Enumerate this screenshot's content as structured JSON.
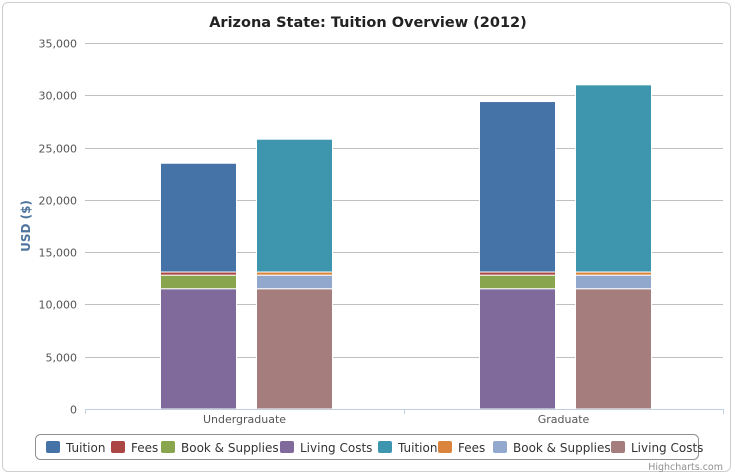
{
  "chart_data": {
    "type": "bar",
    "stacked": true,
    "title": "Arizona State: Tuition Overview (2012)",
    "ylabel": "USD ($)",
    "ylim": [
      0,
      35000
    ],
    "yticks": [
      0,
      5000,
      10000,
      15000,
      20000,
      25000,
      30000,
      35000
    ],
    "ytick_labels": [
      "0",
      "5,000",
      "10,000",
      "15,000",
      "20,000",
      "25,000",
      "30,000",
      "35,000"
    ],
    "categories": [
      "Undergraduate",
      "Graduate"
    ],
    "grid": true,
    "legend_position": "bottom",
    "stacks": [
      {
        "series": [
          {
            "name": "Living Costs",
            "color": "#80699b",
            "values": [
              11500,
              11500
            ]
          },
          {
            "name": "Book & Supplies",
            "color": "#89a54e",
            "values": [
              1300,
              1300
            ]
          },
          {
            "name": "Fees",
            "color": "#aa4643",
            "values": [
              300,
              300
            ]
          },
          {
            "name": "Tuition",
            "color": "#4572a7",
            "values": [
              10400,
              16300
            ]
          }
        ]
      },
      {
        "series": [
          {
            "name": "Living Costs",
            "color": "#a47d7c",
            "values": [
              11500,
              11500
            ]
          },
          {
            "name": "Book & Supplies",
            "color": "#92a8cd",
            "values": [
              1300,
              1300
            ]
          },
          {
            "name": "Fees",
            "color": "#db843d",
            "values": [
              300,
              300
            ]
          },
          {
            "name": "Tuition",
            "color": "#3d96ae",
            "values": [
              12700,
              17900
            ]
          }
        ]
      }
    ],
    "legend": [
      {
        "name": "Tuition",
        "color": "#4572a7"
      },
      {
        "name": "Fees",
        "color": "#aa4643"
      },
      {
        "name": "Book & Supplies",
        "color": "#89a54e"
      },
      {
        "name": "Living Costs",
        "color": "#80699b"
      },
      {
        "name": "Tuition",
        "color": "#3d96ae"
      },
      {
        "name": "Fees",
        "color": "#db843d"
      },
      {
        "name": "Book & Supplies",
        "color": "#92a8cd"
      },
      {
        "name": "Living Costs",
        "color": "#a47d7c"
      }
    ],
    "credits": "Highcharts.com"
  }
}
